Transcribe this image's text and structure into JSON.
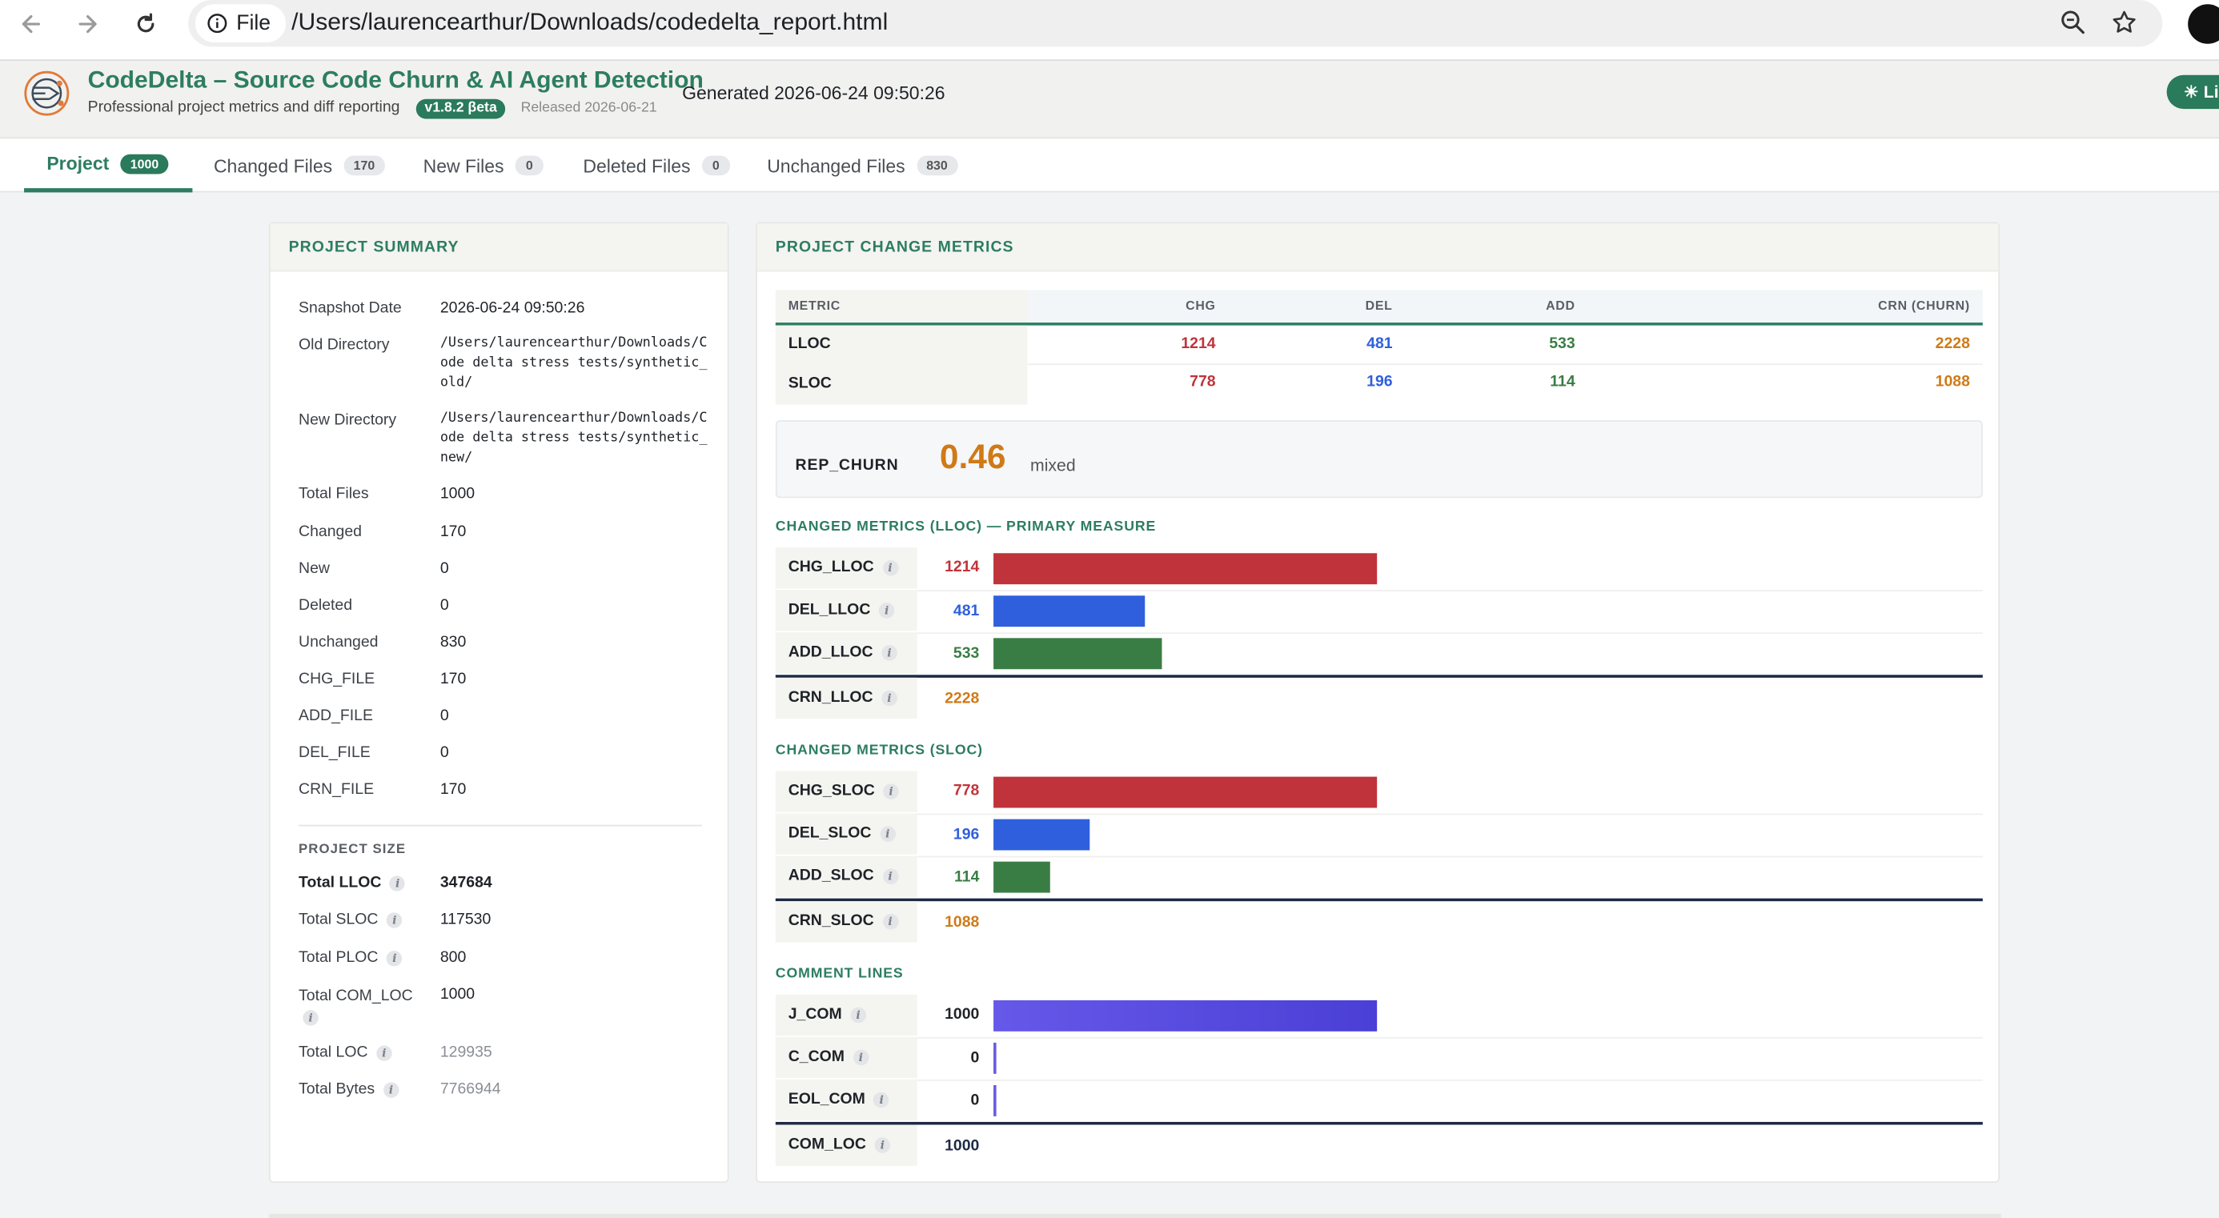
{
  "browser": {
    "security_label": "File",
    "url": "/Users/laurencearthur/Downloads/codedelta_report.html"
  },
  "header": {
    "title": "CodeDelta – Source Code Churn & AI Agent Detection",
    "tagline": "Professional project metrics and diff reporting",
    "version": "v1.8.2 βeta",
    "released": "Released 2026-06-21",
    "generated": "Generated 2026-06-24 09:50:26",
    "theme_button": "☀ Li"
  },
  "tabs": [
    {
      "label": "Project",
      "count": "1000"
    },
    {
      "label": "Changed Files",
      "count": "170"
    },
    {
      "label": "New Files",
      "count": "0"
    },
    {
      "label": "Deleted Files",
      "count": "0"
    },
    {
      "label": "Unchanged Files",
      "count": "830"
    }
  ],
  "summary": {
    "title": "PROJECT SUMMARY",
    "rows": [
      {
        "key": "Snapshot Date",
        "value": "2026-06-24 09:50:26"
      },
      {
        "key": "Old Directory",
        "value": "/Users/laurencearthur/Downloads/Code delta stress tests/synthetic_old/"
      },
      {
        "key": "New Directory",
        "value": "/Users/laurencearthur/Downloads/Code delta stress tests/synthetic_new/"
      },
      {
        "key": "Total Files",
        "value": "1000"
      },
      {
        "key": "Changed",
        "value": "170"
      },
      {
        "key": "New",
        "value": "0"
      },
      {
        "key": "Deleted",
        "value": "0"
      },
      {
        "key": "Unchanged",
        "value": "830"
      },
      {
        "key": "CHG_FILE",
        "value": "170"
      },
      {
        "key": "ADD_FILE",
        "value": "0"
      },
      {
        "key": "DEL_FILE",
        "value": "0"
      },
      {
        "key": "CRN_FILE",
        "value": "170"
      }
    ],
    "size_title": "PROJECT SIZE",
    "size_rows": [
      {
        "key": "Total LLOC",
        "value": "347684"
      },
      {
        "key": "Total SLOC",
        "value": "117530"
      },
      {
        "key": "Total PLOC",
        "value": "800"
      },
      {
        "key": "Total COM_LOC",
        "value": "1000"
      },
      {
        "key": "Total LOC",
        "value": "129935"
      },
      {
        "key": "Total Bytes",
        "value": "7766944"
      }
    ]
  },
  "metrics": {
    "title": "PROJECT CHANGE METRICS",
    "columns": [
      "METRIC",
      "CHG",
      "DEL",
      "ADD",
      "CRN (CHURN)"
    ],
    "rows": [
      {
        "metric": "LLOC",
        "chg": "1214",
        "del": "481",
        "add": "533",
        "crn": "2228"
      },
      {
        "metric": "SLOC",
        "chg": "778",
        "del": "196",
        "add": "114",
        "crn": "1088"
      }
    ],
    "rep_churn_label": "REP_CHURN",
    "rep_churn_value": "0.46",
    "rep_churn_note": "mixed"
  },
  "lloc_section": {
    "title": "CHANGED METRICS (LLOC) — PRIMARY MEASURE",
    "bars": [
      {
        "label": "CHG_LLOC",
        "value": "1214",
        "fraction": 1.0
      },
      {
        "label": "DEL_LLOC",
        "value": "481",
        "fraction": 0.396
      },
      {
        "label": "ADD_LLOC",
        "value": "533",
        "fraction": 0.439
      }
    ],
    "total": {
      "label": "CRN_LLOC",
      "value": "2228"
    }
  },
  "sloc_section": {
    "title": "CHANGED METRICS (SLOC)",
    "bars": [
      {
        "label": "CHG_SLOC",
        "value": "778",
        "fraction": 1.0
      },
      {
        "label": "DEL_SLOC",
        "value": "196",
        "fraction": 0.252
      },
      {
        "label": "ADD_SLOC",
        "value": "114",
        "fraction": 0.147
      }
    ],
    "total": {
      "label": "CRN_SLOC",
      "value": "1088"
    }
  },
  "comment_section": {
    "title": "COMMENT LINES",
    "bars": [
      {
        "label": "J_COM",
        "value": "1000",
        "fraction": 1.0
      },
      {
        "label": "C_COM",
        "value": "0",
        "fraction": 0
      },
      {
        "label": "EOL_COM",
        "value": "0",
        "fraction": 0
      }
    ],
    "total": {
      "label": "COM_LOC",
      "value": "1000"
    }
  },
  "colors": {
    "brand": "#2d7d62",
    "chg": "#c0333a",
    "del": "#2f5fdc",
    "add": "#3a7d44",
    "crn": "#d07a16",
    "com": "#5b4fe0",
    "total": "#1e2a44"
  }
}
